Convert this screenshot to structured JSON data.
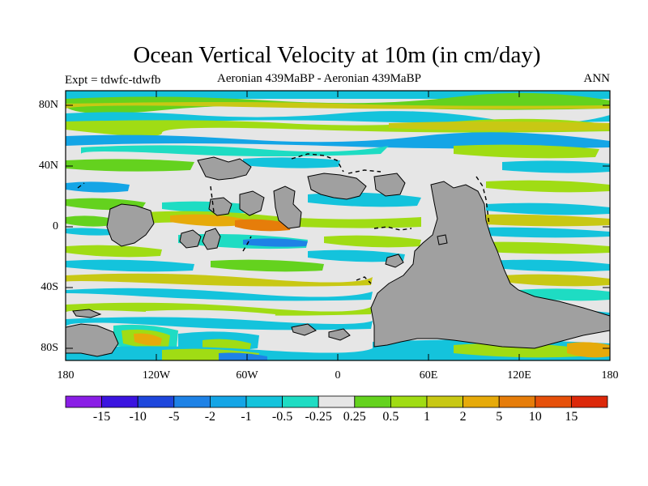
{
  "title": "Ocean Vertical Velocity at 10m (in cm/day)",
  "subtitle_left": "Expt = tdwfc-tdwfb",
  "subtitle_center": "Aeronian 439MaBP - Aeronian 439MaBP",
  "subtitle_right": "ANN",
  "y_axis_labels": [
    "80N",
    "40N",
    "0",
    "40S",
    "80S"
  ],
  "x_axis_labels": [
    "180",
    "120W",
    "60W",
    "0",
    "60E",
    "120E",
    "180"
  ],
  "colors": {
    "land": "#a0a0a0",
    "ocean_background": "#e6e6e6"
  },
  "colorbar": {
    "labels": [
      "-15",
      "-10",
      "-5",
      "-2",
      "-1",
      "-0.5",
      "-0.25",
      "0.25",
      "0.5",
      "1",
      "2",
      "5",
      "10",
      "15"
    ],
    "colors": [
      "#8a1ee6",
      "#3b14e0",
      "#1e46dc",
      "#1e82e6",
      "#14a5e6",
      "#14c3dc",
      "#1edcc3",
      "#e6e6e6",
      "#64d21e",
      "#a0dc14",
      "#c8c814",
      "#e6aa0a",
      "#e67d0a",
      "#e6500a",
      "#dc280a"
    ]
  }
}
